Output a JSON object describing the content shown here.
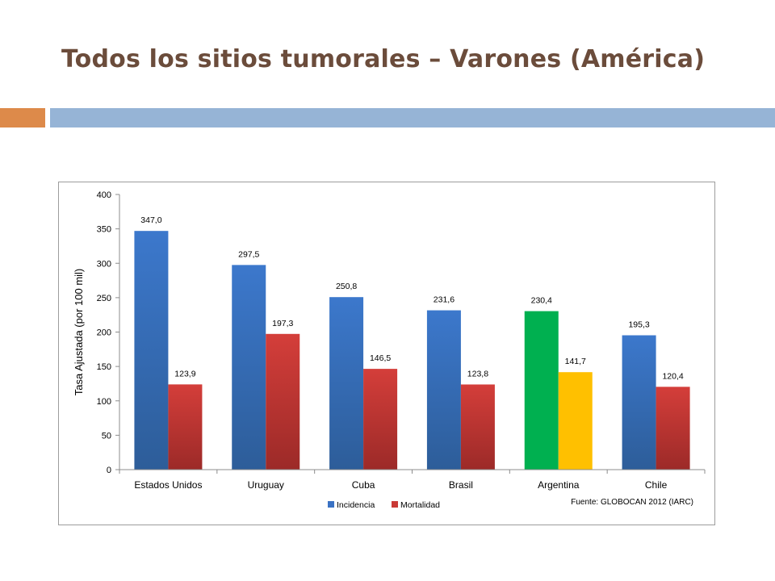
{
  "slide": {
    "title": "Todos los sitios tumorales – Varones (América)"
  },
  "colors": {
    "title": "#6b4c3b",
    "accent_orange": "#dd8a4a",
    "accent_blue": "#96b4d6",
    "incidencia": "#3a72c4",
    "mortalidad": "#c93a36",
    "argentina_incidencia": "#00b050",
    "argentina_mortalidad": "#ffc000"
  },
  "chart_data": {
    "type": "bar",
    "title": "",
    "xlabel": "",
    "ylabel": "Tasa Ajustada (por 100 mil)",
    "ylim": [
      0,
      400
    ],
    "yticks": [
      "0",
      "50",
      "100",
      "150",
      "200",
      "250",
      "300",
      "350",
      "400"
    ],
    "categories": [
      "Estados Unidos",
      "Uruguay",
      "Cuba",
      "Brasil",
      "Argentina",
      "Chile"
    ],
    "series": [
      {
        "name": "Incidencia",
        "values": [
          347.0,
          297.5,
          250.8,
          231.6,
          230.4,
          195.3
        ],
        "labels": [
          "347,0",
          "297,5",
          "250,8",
          "231,6",
          "230,4",
          "195,3"
        ]
      },
      {
        "name": "Mortalidad",
        "values": [
          123.9,
          197.3,
          146.5,
          123.8,
          141.7,
          120.4
        ],
        "labels": [
          "123,9",
          "197,3",
          "146,5",
          "123,8",
          "141,7",
          "120,4"
        ]
      }
    ],
    "highlight_category": "Argentina",
    "grid": false,
    "legend_position": "bottom-center",
    "source": "Fuente: GLOBOCAN 2012 (IARC)"
  }
}
